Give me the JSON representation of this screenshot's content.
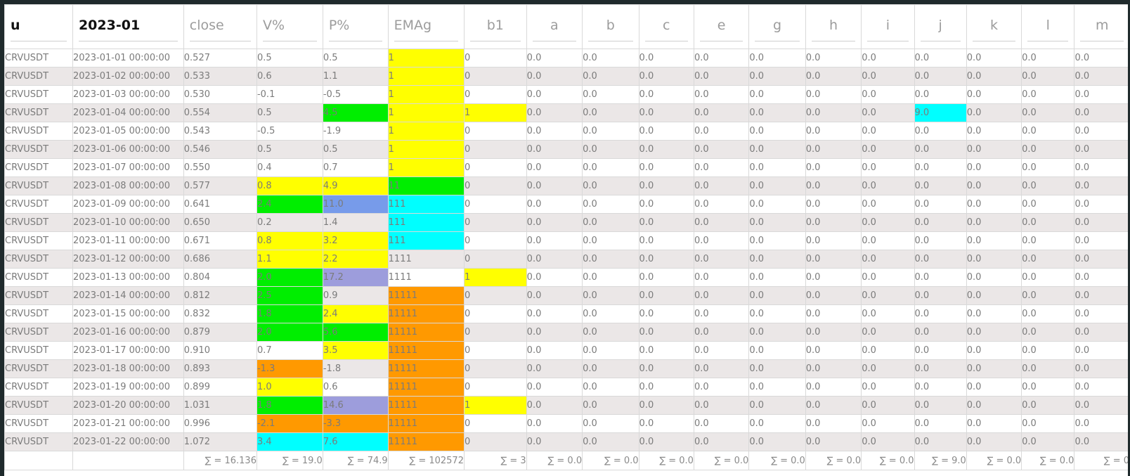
{
  "columns": [
    "u",
    "2023-01",
    "close",
    "V%",
    "P%",
    "EMAg",
    "b1",
    "a",
    "b",
    "c",
    "e",
    "g",
    "h",
    "i",
    "j",
    "k",
    "l",
    "m"
  ],
  "rows": [
    {
      "u": "CRVUSDT",
      "date": "2023-01-01 00:00:00",
      "close": "0.527",
      "v": "0.5",
      "p": "0.5",
      "ema": "1",
      "b1": "0",
      "rest": [
        "0.0",
        "0.0",
        "0.0",
        "0.0",
        "0.0",
        "0.0",
        "0.0",
        "0.0",
        "0.0",
        "0.0",
        "0.0"
      ]
    },
    {
      "u": "CRVUSDT",
      "date": "2023-01-02 00:00:00",
      "close": "0.533",
      "v": "0.6",
      "p": "1.1",
      "ema": "1",
      "b1": "0",
      "rest": [
        "0.0",
        "0.0",
        "0.0",
        "0.0",
        "0.0",
        "0.0",
        "0.0",
        "0.0",
        "0.0",
        "0.0",
        "0.0"
      ]
    },
    {
      "u": "CRVUSDT",
      "date": "2023-01-03 00:00:00",
      "close": "0.530",
      "v": "-0.1",
      "p": "-0.5",
      "ema": "1",
      "b1": "0",
      "rest": [
        "0.0",
        "0.0",
        "0.0",
        "0.0",
        "0.0",
        "0.0",
        "0.0",
        "0.0",
        "0.0",
        "0.0",
        "0.0"
      ]
    },
    {
      "u": "CRVUSDT",
      "date": "2023-01-04 00:00:00",
      "close": "0.554",
      "v": "0.5",
      "p": "4.5",
      "ema": "1",
      "b1": "1",
      "rest": [
        "0.0",
        "0.0",
        "0.0",
        "0.0",
        "0.0",
        "0.0",
        "0.0",
        "9.0",
        "0.0",
        "0.0",
        "0.0"
      ]
    },
    {
      "u": "CRVUSDT",
      "date": "2023-01-05 00:00:00",
      "close": "0.543",
      "v": "-0.5",
      "p": "-1.9",
      "ema": "1",
      "b1": "0",
      "rest": [
        "0.0",
        "0.0",
        "0.0",
        "0.0",
        "0.0",
        "0.0",
        "0.0",
        "0.0",
        "0.0",
        "0.0",
        "0.0"
      ]
    },
    {
      "u": "CRVUSDT",
      "date": "2023-01-06 00:00:00",
      "close": "0.546",
      "v": "0.5",
      "p": "0.5",
      "ema": "1",
      "b1": "0",
      "rest": [
        "0.0",
        "0.0",
        "0.0",
        "0.0",
        "0.0",
        "0.0",
        "0.0",
        "0.0",
        "0.0",
        "0.0",
        "0.0"
      ]
    },
    {
      "u": "CRVUSDT",
      "date": "2023-01-07 00:00:00",
      "close": "0.550",
      "v": "0.4",
      "p": "0.7",
      "ema": "1",
      "b1": "0",
      "rest": [
        "0.0",
        "0.0",
        "0.0",
        "0.0",
        "0.0",
        "0.0",
        "0.0",
        "0.0",
        "0.0",
        "0.0",
        "0.0"
      ]
    },
    {
      "u": "CRVUSDT",
      "date": "2023-01-08 00:00:00",
      "close": "0.577",
      "v": "0.8",
      "p": "4.9",
      "ema": "11",
      "b1": "0",
      "rest": [
        "0.0",
        "0.0",
        "0.0",
        "0.0",
        "0.0",
        "0.0",
        "0.0",
        "0.0",
        "0.0",
        "0.0",
        "0.0"
      ]
    },
    {
      "u": "CRVUSDT",
      "date": "2023-01-09 00:00:00",
      "close": "0.641",
      "v": "2.4",
      "p": "11.0",
      "ema": "111",
      "b1": "0",
      "rest": [
        "0.0",
        "0.0",
        "0.0",
        "0.0",
        "0.0",
        "0.0",
        "0.0",
        "0.0",
        "0.0",
        "0.0",
        "0.0"
      ]
    },
    {
      "u": "CRVUSDT",
      "date": "2023-01-10 00:00:00",
      "close": "0.650",
      "v": "0.2",
      "p": "1.4",
      "ema": "111",
      "b1": "0",
      "rest": [
        "0.0",
        "0.0",
        "0.0",
        "0.0",
        "0.0",
        "0.0",
        "0.0",
        "0.0",
        "0.0",
        "0.0",
        "0.0"
      ]
    },
    {
      "u": "CRVUSDT",
      "date": "2023-01-11 00:00:00",
      "close": "0.671",
      "v": "0.8",
      "p": "3.2",
      "ema": "111",
      "b1": "0",
      "rest": [
        "0.0",
        "0.0",
        "0.0",
        "0.0",
        "0.0",
        "0.0",
        "0.0",
        "0.0",
        "0.0",
        "0.0",
        "0.0"
      ]
    },
    {
      "u": "CRVUSDT",
      "date": "2023-01-12 00:00:00",
      "close": "0.686",
      "v": "1.1",
      "p": "2.2",
      "ema": "1111",
      "b1": "0",
      "rest": [
        "0.0",
        "0.0",
        "0.0",
        "0.0",
        "0.0",
        "0.0",
        "0.0",
        "0.0",
        "0.0",
        "0.0",
        "0.0"
      ]
    },
    {
      "u": "CRVUSDT",
      "date": "2023-01-13 00:00:00",
      "close": "0.804",
      "v": "2.0",
      "p": "17.2",
      "ema": "1111",
      "b1": "1",
      "rest": [
        "0.0",
        "0.0",
        "0.0",
        "0.0",
        "0.0",
        "0.0",
        "0.0",
        "0.0",
        "0.0",
        "0.0",
        "0.0"
      ]
    },
    {
      "u": "CRVUSDT",
      "date": "2023-01-14 00:00:00",
      "close": "0.812",
      "v": "2.5",
      "p": "0.9",
      "ema": "11111",
      "b1": "0",
      "rest": [
        "0.0",
        "0.0",
        "0.0",
        "0.0",
        "0.0",
        "0.0",
        "0.0",
        "0.0",
        "0.0",
        "0.0",
        "0.0"
      ]
    },
    {
      "u": "CRVUSDT",
      "date": "2023-01-15 00:00:00",
      "close": "0.832",
      "v": "1.8",
      "p": "2.4",
      "ema": "11111",
      "b1": "0",
      "rest": [
        "0.0",
        "0.0",
        "0.0",
        "0.0",
        "0.0",
        "0.0",
        "0.0",
        "0.0",
        "0.0",
        "0.0",
        "0.0"
      ]
    },
    {
      "u": "CRVUSDT",
      "date": "2023-01-16 00:00:00",
      "close": "0.879",
      "v": "2.0",
      "p": "5.6",
      "ema": "11111",
      "b1": "0",
      "rest": [
        "0.0",
        "0.0",
        "0.0",
        "0.0",
        "0.0",
        "0.0",
        "0.0",
        "0.0",
        "0.0",
        "0.0",
        "0.0"
      ]
    },
    {
      "u": "CRVUSDT",
      "date": "2023-01-17 00:00:00",
      "close": "0.910",
      "v": "0.7",
      "p": "3.5",
      "ema": "11111",
      "b1": "0",
      "rest": [
        "0.0",
        "0.0",
        "0.0",
        "0.0",
        "0.0",
        "0.0",
        "0.0",
        "0.0",
        "0.0",
        "0.0",
        "0.0"
      ]
    },
    {
      "u": "CRVUSDT",
      "date": "2023-01-18 00:00:00",
      "close": "0.893",
      "v": "-1.3",
      "p": "-1.8",
      "ema": "11111",
      "b1": "0",
      "rest": [
        "0.0",
        "0.0",
        "0.0",
        "0.0",
        "0.0",
        "0.0",
        "0.0",
        "0.0",
        "0.0",
        "0.0",
        "0.0"
      ]
    },
    {
      "u": "CRVUSDT",
      "date": "2023-01-19 00:00:00",
      "close": "0.899",
      "v": "1.0",
      "p": "0.6",
      "ema": "11111",
      "b1": "0",
      "rest": [
        "0.0",
        "0.0",
        "0.0",
        "0.0",
        "0.0",
        "0.0",
        "0.0",
        "0.0",
        "0.0",
        "0.0",
        "0.0"
      ]
    },
    {
      "u": "CRVUSDT",
      "date": "2023-01-20 00:00:00",
      "close": "1.031",
      "v": "1.8",
      "p": "14.6",
      "ema": "11111",
      "b1": "1",
      "rest": [
        "0.0",
        "0.0",
        "0.0",
        "0.0",
        "0.0",
        "0.0",
        "0.0",
        "0.0",
        "0.0",
        "0.0",
        "0.0"
      ]
    },
    {
      "u": "CRVUSDT",
      "date": "2023-01-21 00:00:00",
      "close": "0.996",
      "v": "-2.1",
      "p": "-3.3",
      "ema": "11111",
      "b1": "0",
      "rest": [
        "0.0",
        "0.0",
        "0.0",
        "0.0",
        "0.0",
        "0.0",
        "0.0",
        "0.0",
        "0.0",
        "0.0",
        "0.0"
      ]
    },
    {
      "u": "CRVUSDT",
      "date": "2023-01-22 00:00:00",
      "close": "1.072",
      "v": "3.4",
      "p": "7.6",
      "ema": "11111",
      "b1": "0",
      "rest": [
        "0.0",
        "0.0",
        "0.0",
        "0.0",
        "0.0",
        "0.0",
        "0.0",
        "0.0",
        "0.0",
        "0.0",
        "0.0"
      ]
    }
  ],
  "highlights": {
    "yellow": "#ffff00",
    "green": "#00ee00",
    "cyan": "#00ffff",
    "orange": "#ff9900",
    "blue": "#779bea",
    "purple": "#9d9ddc"
  },
  "cell_colors": [
    {
      "v": "",
      "p": "",
      "ema": "y",
      "b1": "",
      "j": ""
    },
    {
      "v": "",
      "p": "",
      "ema": "y",
      "b1": "",
      "j": ""
    },
    {
      "v": "",
      "p": "",
      "ema": "y",
      "b1": "",
      "j": ""
    },
    {
      "v": "",
      "p": "g",
      "ema": "y",
      "b1": "y",
      "j": "c"
    },
    {
      "v": "",
      "p": "",
      "ema": "y",
      "b1": "",
      "j": ""
    },
    {
      "v": "",
      "p": "",
      "ema": "y",
      "b1": "",
      "j": ""
    },
    {
      "v": "",
      "p": "",
      "ema": "y",
      "b1": "",
      "j": ""
    },
    {
      "v": "y",
      "p": "y",
      "ema": "g",
      "b1": "",
      "j": ""
    },
    {
      "v": "g",
      "p": "bl",
      "ema": "c",
      "b1": "",
      "j": ""
    },
    {
      "v": "",
      "p": "",
      "ema": "c",
      "b1": "",
      "j": ""
    },
    {
      "v": "y",
      "p": "y",
      "ema": "c",
      "b1": "",
      "j": ""
    },
    {
      "v": "y",
      "p": "y",
      "ema": "",
      "b1": "",
      "j": ""
    },
    {
      "v": "g",
      "p": "pu",
      "ema": "",
      "b1": "y",
      "j": ""
    },
    {
      "v": "g",
      "p": "",
      "ema": "o",
      "b1": "",
      "j": ""
    },
    {
      "v": "g",
      "p": "y",
      "ema": "o",
      "b1": "",
      "j": ""
    },
    {
      "v": "g",
      "p": "g",
      "ema": "o",
      "b1": "",
      "j": ""
    },
    {
      "v": "",
      "p": "y",
      "ema": "o",
      "b1": "",
      "j": ""
    },
    {
      "v": "o",
      "p": "",
      "ema": "o",
      "b1": "",
      "j": ""
    },
    {
      "v": "y",
      "p": "",
      "ema": "o",
      "b1": "",
      "j": ""
    },
    {
      "v": "g",
      "p": "pu",
      "ema": "o",
      "b1": "y",
      "j": ""
    },
    {
      "v": "o",
      "p": "o",
      "ema": "o",
      "b1": "",
      "j": ""
    },
    {
      "v": "c",
      "p": "c",
      "ema": "o",
      "b1": "",
      "j": ""
    }
  ],
  "totals": [
    "",
    "",
    "∑ = 16.136",
    "∑ = 19.0",
    "∑ = 74.9",
    "∑ = 102572",
    "∑ = 3",
    "∑ = 0.0",
    "∑ = 0.0",
    "∑ = 0.0",
    "∑ = 0.0",
    "∑ = 0.0",
    "∑ = 0.0",
    "∑ = 0.0",
    "∑ = 9.0",
    "∑ = 0.0",
    "∑ = 0.0",
    "∑ = 0"
  ]
}
